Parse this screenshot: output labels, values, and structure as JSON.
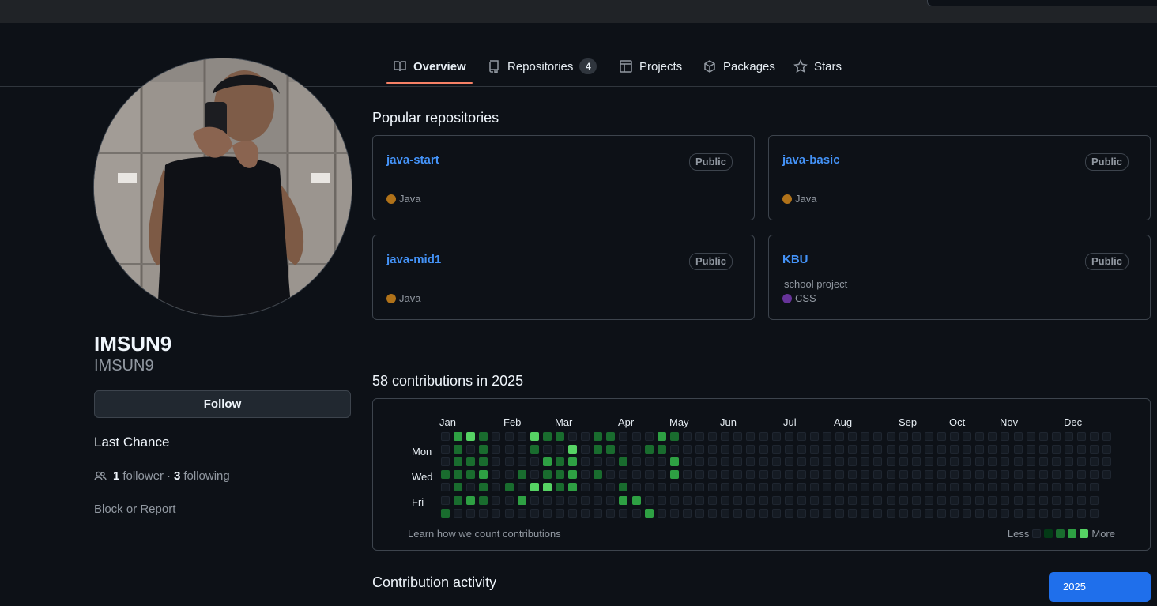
{
  "tabs": [
    {
      "label": "Overview",
      "icon": "book-icon",
      "active": true
    },
    {
      "label": "Repositories",
      "icon": "repo-icon",
      "count": "4"
    },
    {
      "label": "Projects",
      "icon": "table-icon"
    },
    {
      "label": "Packages",
      "icon": "package-icon"
    },
    {
      "label": "Stars",
      "icon": "star-icon"
    }
  ],
  "profile": {
    "name": "IMSUN9",
    "login": "IMSUN9",
    "follow_label": "Follow",
    "bio": "Last Chance",
    "followers": "1",
    "followers_label": "follower",
    "separator": "·",
    "following": "3",
    "following_label": "following",
    "block_report": "Block or Report"
  },
  "popular": {
    "title": "Popular repositories",
    "repos": [
      {
        "name": "java-start",
        "visibility": "Public",
        "description": "",
        "language": "Java",
        "lang_color": "#b07219"
      },
      {
        "name": "java-basic",
        "visibility": "Public",
        "description": "",
        "language": "Java",
        "lang_color": "#b07219"
      },
      {
        "name": "java-mid1",
        "visibility": "Public",
        "description": "",
        "language": "Java",
        "lang_color": "#b07219"
      },
      {
        "name": "KBU",
        "visibility": "Public",
        "description": "school project",
        "language": "CSS",
        "lang_color": "#663399"
      }
    ]
  },
  "contributions": {
    "title": "58 contributions in 2025",
    "months": [
      "Jan",
      "Feb",
      "Mar",
      "Apr",
      "May",
      "Jun",
      "Jul",
      "Aug",
      "Sep",
      "Oct",
      "Nov",
      "Dec"
    ],
    "days": [
      "Mon",
      "Wed",
      "Fri"
    ],
    "learn_link": "Learn how we count contributions",
    "legend_less": "Less",
    "legend_more": "More",
    "colors": [
      "#151b23",
      "#033a16",
      "#196c2e",
      "#2ea043",
      "#56d364"
    ],
    "weeks": [
      [
        0,
        0,
        0,
        2,
        0,
        0,
        2
      ],
      [
        3,
        2,
        2,
        2,
        2,
        2,
        0
      ],
      [
        4,
        0,
        2,
        2,
        0,
        3,
        0
      ],
      [
        2,
        2,
        2,
        3,
        2,
        2,
        0
      ],
      [
        0,
        0,
        0,
        0,
        0,
        0,
        0
      ],
      [
        0,
        0,
        0,
        0,
        2,
        0,
        0
      ],
      [
        0,
        0,
        0,
        2,
        0,
        3,
        0
      ],
      [
        4,
        2,
        0,
        0,
        4,
        0,
        0
      ],
      [
        2,
        0,
        3,
        2,
        4,
        0,
        0
      ],
      [
        2,
        0,
        2,
        2,
        2,
        0,
        0
      ],
      [
        0,
        4,
        3,
        3,
        3,
        0,
        0
      ],
      [
        0,
        0,
        0,
        0,
        0,
        0,
        0
      ],
      [
        2,
        2,
        0,
        2,
        0,
        0,
        0
      ],
      [
        2,
        2,
        0,
        0,
        0,
        0,
        0
      ],
      [
        0,
        0,
        2,
        0,
        2,
        3,
        0
      ],
      [
        0,
        0,
        0,
        0,
        0,
        3,
        0
      ],
      [
        0,
        2,
        0,
        0,
        0,
        0,
        3
      ],
      [
        3,
        2,
        0,
        0,
        0,
        0,
        0
      ],
      [
        2,
        0,
        3,
        3,
        0,
        0,
        0
      ]
    ]
  },
  "activity": {
    "title": "Contribution activity",
    "year": "2025"
  }
}
